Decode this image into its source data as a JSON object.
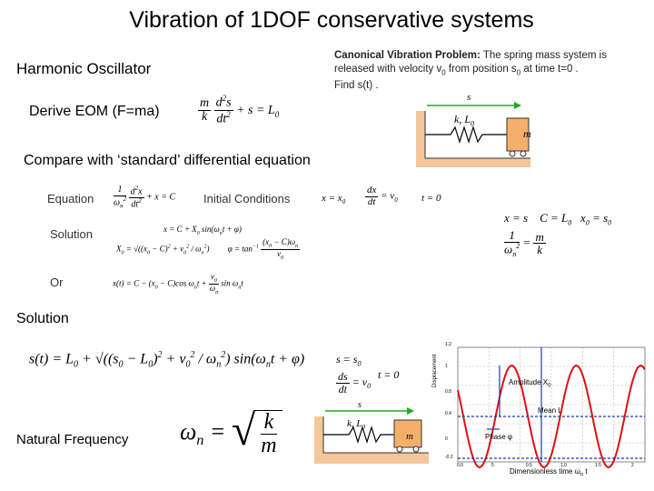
{
  "title": "Vibration of 1DOF conservative systems",
  "harmonic_oscillator": "Harmonic Oscillator",
  "derive_eom": "Derive EOM (F=ma)",
  "compare_text": "Compare with ‘standard’ differential equation",
  "canonical": {
    "heading": "Canonical Vibration Problem:",
    "line1": "The spring mass system is",
    "line2": "released with velocity v",
    "line2b": "0",
    "line3": " from position s",
    "line3b": "0",
    "line4": " at time t=0 .",
    "line5": "Find s(t) ."
  },
  "labels": {
    "equation": "Equation",
    "initial_conditions": "Initial  Conditions",
    "solution_small": "Solution",
    "or": "Or",
    "solution": "Solution",
    "natural_frequency": "Natural Frequency",
    "mass": "m",
    "s_arrow": "s",
    "spring": "k, L",
    "spring_sub": "0"
  },
  "plot": {
    "ylabel": "Displacement",
    "xlabel": "Dimensionless time ω",
    "xlabel_tail": "n",
    "xlabel_end": " t",
    "yticks": [
      "1.2",
      "1",
      "0.8",
      "0.4",
      "0",
      "-0.2"
    ],
    "xticks": [
      "0.0",
      "5",
      "0.5",
      "1.0",
      "1.5",
      "2"
    ],
    "amplitude": "Amplitude  X",
    "amplitude_sub": "0",
    "mean": "Mean",
    "mean_sub": "L",
    "phase": "Phase  φ"
  },
  "colors": {
    "sine": "#e01010",
    "arrow": "#22aa22",
    "ground": "#f4c79a",
    "mass": "#f4b06a"
  }
}
